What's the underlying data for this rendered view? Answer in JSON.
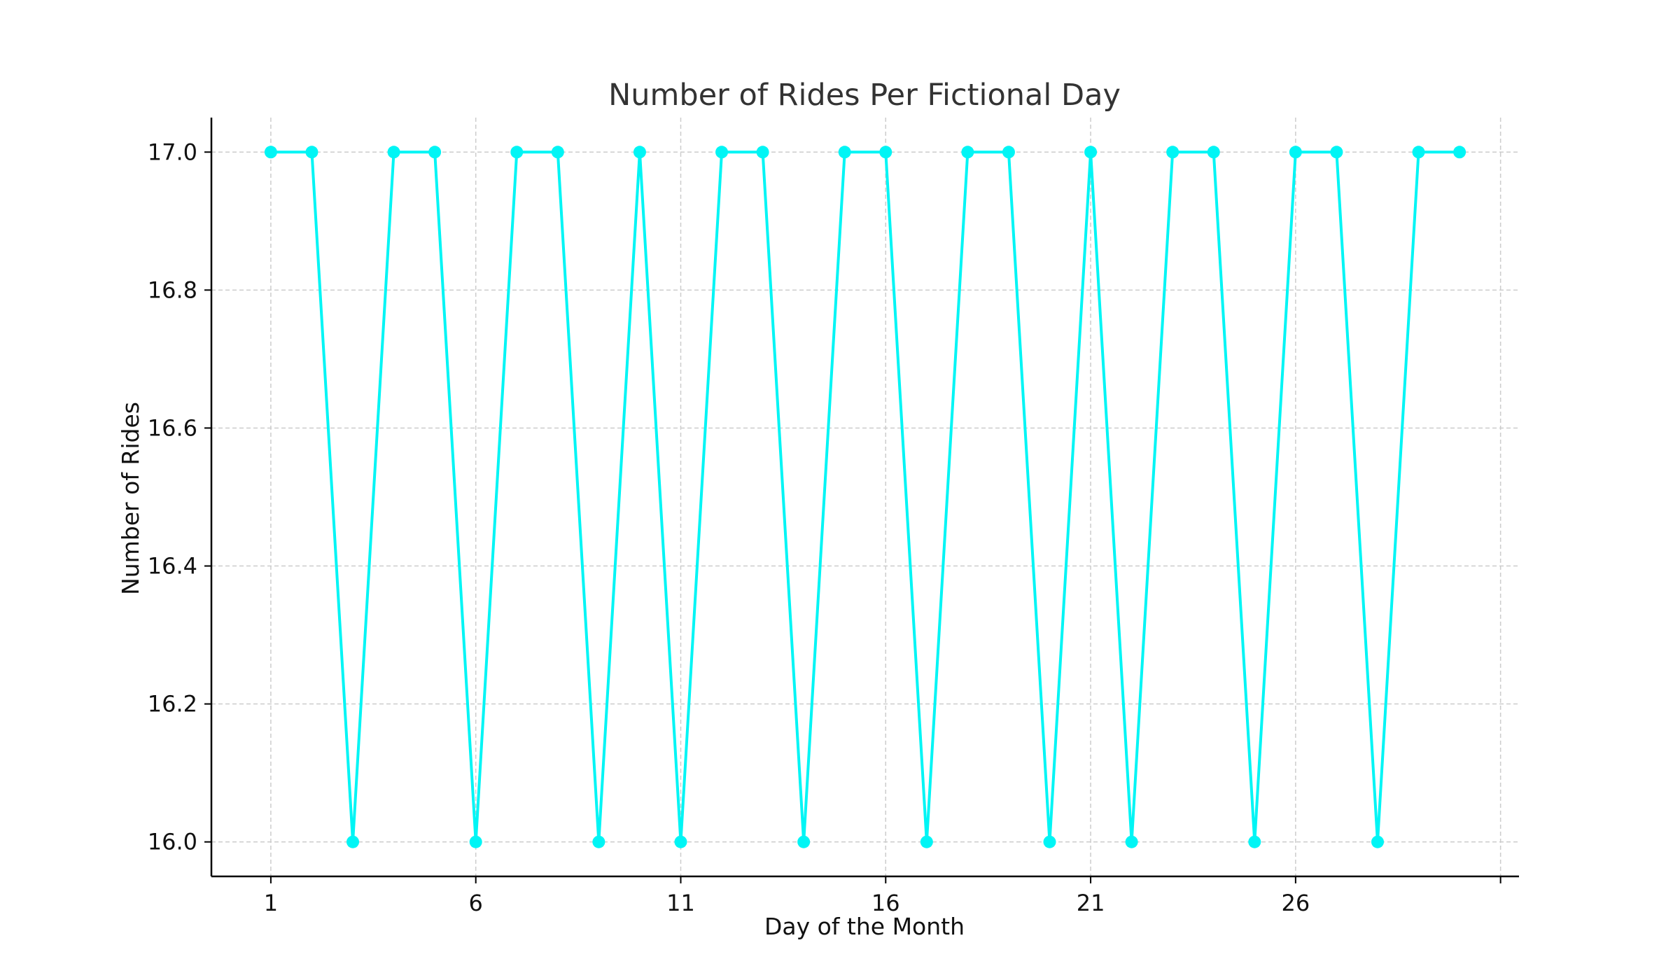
{
  "chart_data": {
    "type": "line",
    "title": "Number of Rides Per Fictional Day",
    "xlabel": "Day of the Month",
    "ylabel": "Number of Rides",
    "x": [
      1,
      2,
      3,
      4,
      5,
      6,
      7,
      8,
      9,
      10,
      11,
      12,
      13,
      14,
      15,
      16,
      17,
      18,
      19,
      20,
      21,
      22,
      23,
      24,
      25,
      26,
      27,
      28,
      29,
      30
    ],
    "series": [
      {
        "values": [
          17,
          17,
          16,
          17,
          17,
          16,
          17,
          17,
          16,
          17,
          16,
          17,
          17,
          16,
          17,
          17,
          16,
          17,
          17,
          16,
          17,
          16,
          17,
          17,
          16,
          17,
          17,
          16,
          17,
          17
        ],
        "color": "#00f5f5"
      }
    ],
    "xticks": [
      1,
      6,
      11,
      16,
      21,
      26,
      31
    ],
    "xtick_labels": [
      "1",
      "6",
      "11",
      "16",
      "21",
      "26",
      ""
    ],
    "yticks": [
      16.0,
      16.2,
      16.4,
      16.6,
      16.8,
      17.0
    ],
    "ytick_labels": [
      "16.0",
      "16.2",
      "16.4",
      "16.6",
      "16.8",
      "17.0"
    ],
    "xlim": [
      -0.45,
      31.45
    ],
    "ylim": [
      15.95,
      17.05
    ],
    "grid": true,
    "legend": "none"
  }
}
